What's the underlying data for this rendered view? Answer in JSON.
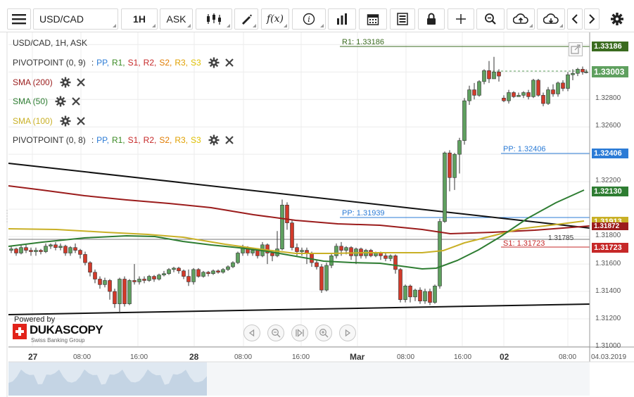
{
  "toolbar": {
    "symbol": "USD/CAD",
    "timeframe": "1H",
    "side": "ASK",
    "icons": [
      "menu-icon",
      "candle-type-icon",
      "draw-icon",
      "function-icon",
      "info-icon",
      "volume-bars-icon",
      "calendar-icon",
      "template-icon",
      "lock-icon",
      "crosshair-icon",
      "zoom-icon",
      "upload-icon",
      "download-icon",
      "previous-icon",
      "next-icon",
      "settings-icon"
    ]
  },
  "legend": {
    "instrument": "USD/CAD, 1H, ASK",
    "pivot1": {
      "label": "PIVOTPOINT (0, 9)",
      "sep": ":",
      "pp": "PP,",
      "r1": "R1,",
      "s1": "S1,",
      "r2": "R2,",
      "s2": "S2,",
      "r3": "R3,",
      "s3": "S3"
    },
    "sma200": "SMA (200)",
    "sma50": "SMA (50)",
    "sma100": "SMA (100)",
    "pivot2": {
      "label": "PIVOTPOINT (0, 8)",
      "sep": ":",
      "pp": "PP,",
      "r1": "R1,",
      "s1": "S1,",
      "r2": "R2,",
      "s2": "S2,",
      "r3": "R3,",
      "s3": "S3"
    }
  },
  "colors": {
    "pp": "#2b7bd6",
    "r1": "#3a8a23",
    "s1": "#c62828",
    "r2": "#c62828",
    "s2": "#e07b00",
    "r3": "#e0a000",
    "s3": "#e0c000",
    "sma200": "#9b1c1c",
    "sma50": "#2e7d32",
    "sma100": "#c9b026",
    "bull": "#5fa05f",
    "bear": "#d23a2a"
  },
  "ref_lines": {
    "r1": "R1: 1.33186",
    "pp_new": "PP: 1.32406",
    "pp_old": "PP: 1.31939",
    "s1": "S1: 1.31723",
    "cross": "1.31785"
  },
  "price_tags": [
    {
      "value": "1.33186",
      "color": "#3a6b1f"
    },
    {
      "value": "1.33003",
      "color": "#5fa05f"
    },
    {
      "value": "1.32406",
      "color": "#2b7bd6"
    },
    {
      "value": "1.32130",
      "color": "#2e7d32"
    },
    {
      "value": "1.31913",
      "color": "#c9b026"
    },
    {
      "value": "1.31872",
      "color": "#9b1c1c"
    },
    {
      "value": "1.31723",
      "color": "#c62828"
    }
  ],
  "price_axis": [
    "1.32800",
    "1.32600",
    "1.32200",
    "1.31800",
    "1.31600",
    "1.31400",
    "1.31200",
    "1.31000",
    "1.31785"
  ],
  "time_axis": {
    "major": [
      "27",
      "28",
      "Mar",
      "02"
    ],
    "minor": [
      "08:00",
      "16:00",
      "08:00",
      "16:00",
      "08:00",
      "16:00",
      "08:00"
    ],
    "end_date": "04.03.2019"
  },
  "branding": {
    "powered": "Powered by",
    "name": "DUKASCOPY",
    "tagline": "Swiss Banking Group"
  }
}
